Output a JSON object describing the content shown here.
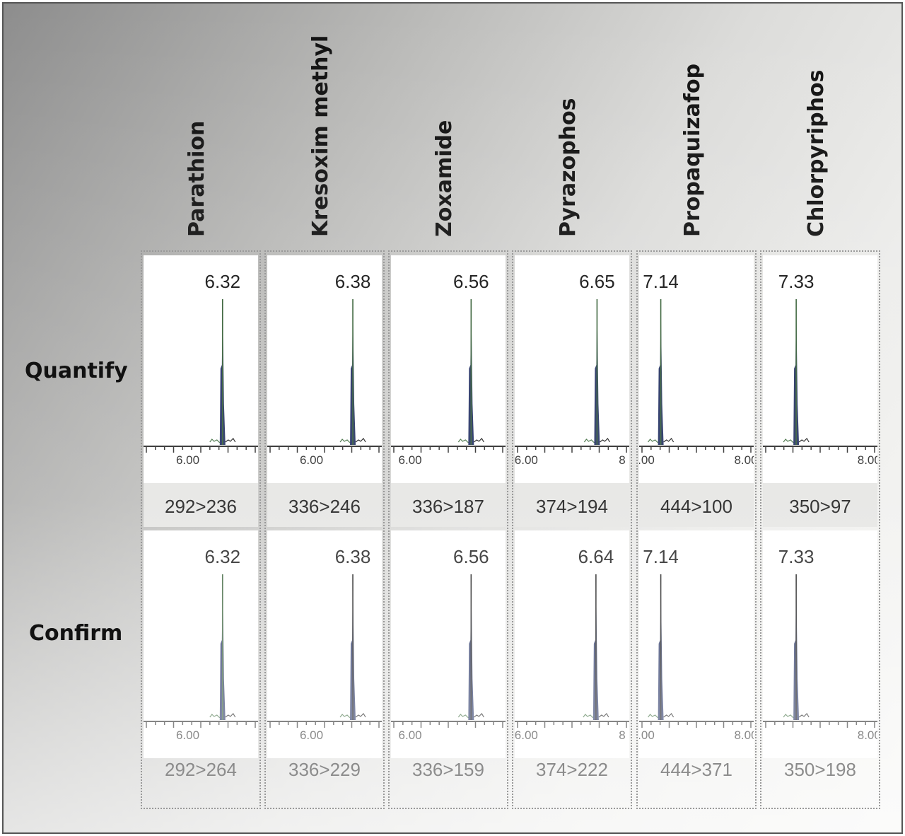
{
  "chart_data": {
    "type": "line",
    "row_labels": [
      "Quantify",
      "Confirm"
    ],
    "columns": [
      {
        "compound": "Parathion",
        "x_ticks": [
          "6.00"
        ],
        "quantify": {
          "rt": 6.32,
          "rt_label": "6.32",
          "transition": "292>236"
        },
        "confirm": {
          "rt": 6.32,
          "rt_label": "6.32",
          "transition": "292>264"
        }
      },
      {
        "compound": "Kresoxim methyl",
        "x_ticks": [
          "6.00"
        ],
        "quantify": {
          "rt": 6.38,
          "rt_label": "6.38",
          "transition": "336>246"
        },
        "confirm": {
          "rt": 6.38,
          "rt_label": "6.38",
          "transition": "336>229"
        }
      },
      {
        "compound": "Zoxamide",
        "x_ticks": [
          "6.00"
        ],
        "quantify": {
          "rt": 6.56,
          "rt_label": "6.56",
          "transition": "336>187"
        },
        "confirm": {
          "rt": 6.56,
          "rt_label": "6.56",
          "transition": "336>159"
        }
      },
      {
        "compound": "Pyrazophos",
        "x_ticks": [
          "6.00",
          "8"
        ],
        "quantify": {
          "rt": 6.65,
          "rt_label": "6.65",
          "transition": "374>194"
        },
        "confirm": {
          "rt": 6.64,
          "rt_label": "6.64",
          "transition": "374>222"
        }
      },
      {
        "compound": "Propaquizafop",
        "x_ticks": [
          ".00",
          "8.00"
        ],
        "quantify": {
          "rt": 7.14,
          "rt_label": "7.14",
          "transition": "444>100"
        },
        "confirm": {
          "rt": 7.14,
          "rt_label": "7.14",
          "transition": "444>371"
        }
      },
      {
        "compound": "Chlorpyriphos",
        "x_ticks": [
          "8.00"
        ],
        "quantify": {
          "rt": 7.33,
          "rt_label": "7.33",
          "transition": "350>97"
        },
        "confirm": {
          "rt": 7.33,
          "rt_label": "7.33",
          "transition": "350>198"
        }
      }
    ]
  },
  "colors": {
    "peak_fill": "#1c2a5e",
    "peak_line": "#0a0a0a",
    "peak_line_alt": "#2f5a2f",
    "baseline_noise": "#3a6a3a",
    "band": "#e4e4e2"
  }
}
